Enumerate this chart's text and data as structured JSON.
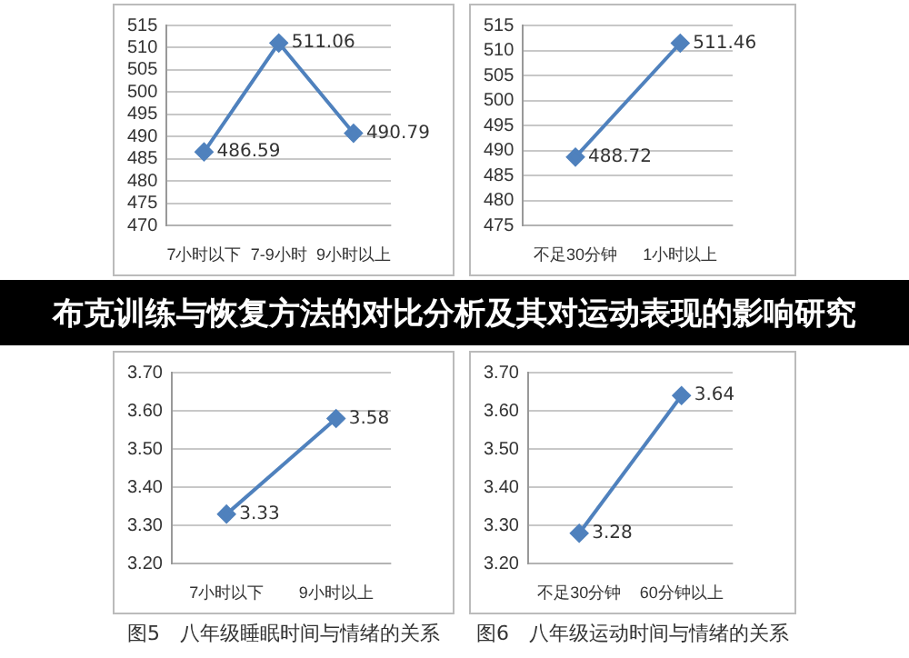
{
  "chart_data": [
    {
      "type": "line",
      "categories": [
        "7小时以下",
        "7-9小时",
        "9小时以上"
      ],
      "values": [
        486.59,
        511.06,
        490.79
      ],
      "color": "#4f81bd",
      "ylim": [
        470,
        515
      ],
      "yticks": [
        470,
        475,
        480,
        485,
        490,
        495,
        500,
        505,
        510,
        515
      ],
      "grid": "y",
      "marker": "diamond",
      "data_labels": true
    },
    {
      "type": "line",
      "categories": [
        "不足30分钟",
        "1小时以上"
      ],
      "values": [
        488.72,
        511.46
      ],
      "color": "#4f81bd",
      "ylim": [
        475,
        515
      ],
      "yticks": [
        475,
        480,
        485,
        490,
        495,
        500,
        505,
        510,
        515
      ],
      "grid": "y",
      "marker": "diamond",
      "data_labels": true
    },
    {
      "type": "other",
      "title": "布克训练与恢复方法的对比分析及其对运动表现的影响研究"
    },
    {
      "type": "line",
      "categories": [
        "7小时以下",
        "9小时以上"
      ],
      "values": [
        3.33,
        3.58
      ],
      "color": "#4f81bd",
      "ylim": [
        3.2,
        3.7
      ],
      "yticks": [
        {
          "value": 3.2,
          "label": "3.20"
        },
        {
          "value": 3.3,
          "label": "3.30"
        },
        {
          "value": 3.4,
          "label": "3.40"
        },
        {
          "value": 3.5,
          "label": "3.50"
        },
        {
          "value": 3.6,
          "label": "3.60"
        },
        {
          "value": 3.7,
          "label": "3.70"
        }
      ],
      "grid": "y",
      "marker": "diamond",
      "data_labels": true,
      "annotations": [
        "图5　八年级睡眠时间与情绪的关系"
      ]
    },
    {
      "type": "line",
      "categories": [
        "不足30分钟",
        "60分钟以上"
      ],
      "values": [
        3.28,
        3.64
      ],
      "color": "#4f81bd",
      "ylim": [
        3.2,
        3.7
      ],
      "yticks": [
        {
          "value": 3.2,
          "label": "3.20"
        },
        {
          "value": 3.3,
          "label": "3.30"
        },
        {
          "value": 3.4,
          "label": "3.40"
        },
        {
          "value": 3.5,
          "label": "3.50"
        },
        {
          "value": 3.6,
          "label": "3.60"
        },
        {
          "value": 3.7,
          "label": "3.70"
        }
      ],
      "grid": "y",
      "marker": "diamond",
      "data_labels": true,
      "annotations": [
        "图6　八年级运动时间与情绪的关系"
      ]
    }
  ]
}
